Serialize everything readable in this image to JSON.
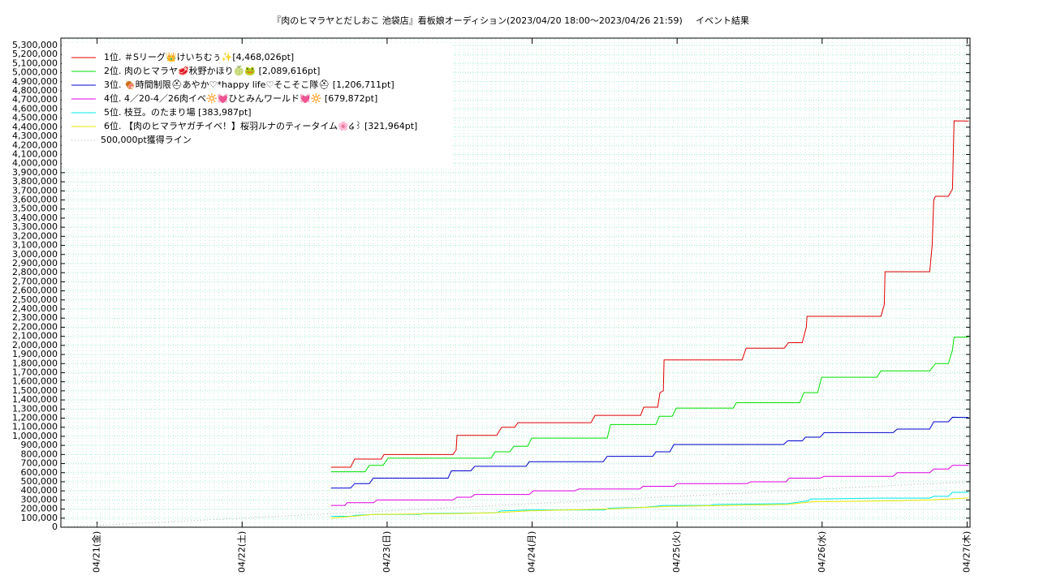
{
  "chart_data": {
    "type": "line",
    "title": "『肉のヒマラヤとだしおこ 池袋店』看板娘オーディション(2023/04/20 18:00〜2023/04/26 21:59)",
    "subtitle": "イベント結果",
    "xlim": [
      20.75,
      27.02
    ],
    "xticks": [
      {
        "value": 21,
        "label": "04/21(金)"
      },
      {
        "value": 22,
        "label": "04/22(土)"
      },
      {
        "value": 23,
        "label": "04/23(日)"
      },
      {
        "value": 24,
        "label": "04/24(月)"
      },
      {
        "value": 25,
        "label": "04/25(火)"
      },
      {
        "value": 26,
        "label": "04/26(水)"
      },
      {
        "value": 27,
        "label": "04/27(木)"
      }
    ],
    "ylim": [
      0,
      5380000
    ],
    "yticks": [
      0,
      {
        "value": 100000,
        "label": "100,000"
      },
      {
        "value": 200000,
        "label": "200,000"
      },
      {
        "value": 300000,
        "label": "300,000"
      },
      {
        "value": 400000,
        "label": "400,000"
      },
      {
        "value": 500000,
        "label": "500,000"
      },
      {
        "value": 600000,
        "label": "600,000"
      },
      {
        "value": 700000,
        "label": "700,000"
      },
      {
        "value": 800000,
        "label": "800,000"
      },
      {
        "value": 900000,
        "label": "900,000"
      },
      {
        "value": 1000000,
        "label": "1,000,000"
      },
      {
        "value": 1100000,
        "label": "1,100,000"
      },
      {
        "value": 1200000,
        "label": "1,200,000"
      },
      {
        "value": 1300000,
        "label": "1,300,000"
      },
      {
        "value": 1400000,
        "label": "1,400,000"
      },
      {
        "value": 1500000,
        "label": "1,500,000"
      },
      {
        "value": 1600000,
        "label": "1,600,000"
      },
      {
        "value": 1700000,
        "label": "1,700,000"
      },
      {
        "value": 1800000,
        "label": "1,800,000"
      },
      {
        "value": 1900000,
        "label": "1,900,000"
      },
      {
        "value": 2000000,
        "label": "2,000,000"
      },
      {
        "value": 2100000,
        "label": "2,100,000"
      },
      {
        "value": 2200000,
        "label": "2,200,000"
      },
      {
        "value": 2300000,
        "label": "2,300,000"
      },
      {
        "value": 2400000,
        "label": "2,400,000"
      },
      {
        "value": 2500000,
        "label": "2,500,000"
      },
      {
        "value": 2600000,
        "label": "2,600,000"
      },
      {
        "value": 2700000,
        "label": "2,700,000"
      },
      {
        "value": 2800000,
        "label": "2,800,000"
      },
      {
        "value": 2900000,
        "label": "2,900,000"
      },
      {
        "value": 3000000,
        "label": "3,000,000"
      },
      {
        "value": 3100000,
        "label": "3,100,000"
      },
      {
        "value": 3200000,
        "label": "3,200,000"
      },
      {
        "value": 3300000,
        "label": "3,300,000"
      },
      {
        "value": 3400000,
        "label": "3,400,000"
      },
      {
        "value": 3500000,
        "label": "3,500,000"
      },
      {
        "value": 3600000,
        "label": "3,600,000"
      },
      {
        "value": 3700000,
        "label": "3,700,000"
      },
      {
        "value": 3800000,
        "label": "3,800,000"
      },
      {
        "value": 3900000,
        "label": "3,900,000"
      },
      {
        "value": 4000000,
        "label": "4,000,000"
      },
      {
        "value": 4100000,
        "label": "4,100,000"
      },
      {
        "value": 4200000,
        "label": "4,200,000"
      },
      {
        "value": 4300000,
        "label": "4,300,000"
      },
      {
        "value": 4400000,
        "label": "4,400,000"
      },
      {
        "value": 4500000,
        "label": "4,500,000"
      },
      {
        "value": 4600000,
        "label": "4,600,000"
      },
      {
        "value": 4700000,
        "label": "4,700,000"
      },
      {
        "value": 4800000,
        "label": "4,800,000"
      },
      {
        "value": 4900000,
        "label": "4,900,000"
      },
      {
        "value": 5000000,
        "label": "5,000,000"
      },
      {
        "value": 5100000,
        "label": "5,100,000"
      },
      {
        "value": 5200000,
        "label": "5,200,000"
      },
      {
        "value": 5300000,
        "label": "5,300,000"
      }
    ],
    "grid": true,
    "legend": "top-left",
    "series": [
      {
        "name": "1位. ＃Sリーグ👑けいちむぅ✨[4,468,026pt]",
        "color": "#e00000",
        "x": [
          22.613,
          22.748,
          22.776,
          22.961,
          22.978,
          23.454,
          23.476,
          23.482,
          23.756,
          23.79,
          23.88,
          23.902,
          24.406,
          24.434,
          24.748,
          24.77,
          24.866,
          24.882,
          24.905,
          24.91,
          25.448,
          25.476,
          25.739,
          25.768,
          25.863,
          25.891,
          25.896,
          26.406,
          26.429,
          26.434,
          26.742,
          26.759,
          26.77,
          26.782,
          26.871,
          26.899,
          26.91,
          27.011
        ],
        "values": [
          660000,
          660000,
          750000,
          750000,
          800000,
          800000,
          850000,
          1010000,
          1010000,
          1100000,
          1100000,
          1150000,
          1150000,
          1230000,
          1230000,
          1320000,
          1320000,
          1480000,
          1500000,
          1840000,
          1840000,
          1970000,
          1970000,
          2030000,
          2030000,
          2200000,
          2320000,
          2320000,
          2450000,
          2810000,
          2810000,
          3100000,
          3600000,
          3640000,
          3640000,
          3720000,
          4470000,
          4468026
        ]
      },
      {
        "name": "2位. 肉のヒマラヤ🥩秋野かほり🍈🐸 [2,089,616pt]",
        "color": "#00e000",
        "x": [
          22.613,
          22.849,
          22.877,
          22.972,
          23.006,
          23.717,
          23.745,
          23.846,
          23.874,
          23.969,
          23.997,
          24.518,
          24.541,
          24.854,
          24.877,
          24.966,
          24.994,
          25.387,
          25.409,
          25.846,
          25.874,
          25.969,
          25.997,
          26.378,
          26.406,
          26.742,
          26.782,
          26.871,
          26.899,
          26.91,
          27.011
        ],
        "values": [
          610000,
          610000,
          680000,
          680000,
          760000,
          760000,
          830000,
          830000,
          890000,
          890000,
          980000,
          980000,
          1130000,
          1130000,
          1220000,
          1220000,
          1310000,
          1310000,
          1370000,
          1370000,
          1480000,
          1480000,
          1650000,
          1650000,
          1720000,
          1720000,
          1800000,
          1800000,
          1950000,
          2090000,
          2089616
        ]
      },
      {
        "name": "3位. 🍖時間制限⛑あやか♡*happy life♡そこそこ隊⛑ [1,206,711pt]",
        "color": "#0000d0",
        "x": [
          22.613,
          22.748,
          22.776,
          22.877,
          22.905,
          23.42,
          23.443,
          23.577,
          23.605,
          23.958,
          23.98,
          24.49,
          24.518,
          24.832,
          24.854,
          24.95,
          24.978,
          25.734,
          25.762,
          25.863,
          25.885,
          25.986,
          26.014,
          26.49,
          26.518,
          26.742,
          26.77,
          26.871,
          26.899,
          27.011
        ],
        "values": [
          430000,
          430000,
          480000,
          480000,
          540000,
          540000,
          620000,
          620000,
          670000,
          670000,
          720000,
          720000,
          780000,
          780000,
          830000,
          830000,
          910000,
          910000,
          950000,
          950000,
          990000,
          990000,
          1040000,
          1040000,
          1080000,
          1080000,
          1160000,
          1160000,
          1210000,
          1206711
        ]
      },
      {
        "name": "4位. 4／20-4／26肉イベ🔆💓ひとみんワールド💓🔆 [679,872pt]",
        "color": "#e000e0",
        "x": [
          22.613,
          22.709,
          22.725,
          22.905,
          22.933,
          23.454,
          23.482,
          23.577,
          23.605,
          23.98,
          24.008,
          24.294,
          24.322,
          24.742,
          24.765,
          24.978,
          25.0,
          25.482,
          25.51,
          25.751,
          25.773,
          25.986,
          26.014,
          26.49,
          26.518,
          26.742,
          26.77,
          26.871,
          26.899,
          27.011
        ],
        "values": [
          240000,
          240000,
          270000,
          270000,
          300000,
          300000,
          330000,
          330000,
          360000,
          360000,
          400000,
          400000,
          420000,
          420000,
          450000,
          450000,
          480000,
          480000,
          500000,
          500000,
          540000,
          540000,
          560000,
          560000,
          600000,
          600000,
          640000,
          640000,
          680000,
          679872
        ]
      },
      {
        "name": "5位. 枝豆。のたまり場 [383,987pt]",
        "color": "#00e8e8",
        "x": [
          22.613,
          22.748,
          22.776,
          22.905,
          23.23,
          23.241,
          23.756,
          23.784,
          23.997,
          24.501,
          24.529,
          24.782,
          24.91,
          25.23,
          25.258,
          25.762,
          25.902,
          25.919,
          26.378,
          26.742,
          26.77,
          26.871,
          26.899,
          27.011
        ],
        "values": [
          120000,
          120000,
          130000,
          140000,
          140000,
          150000,
          160000,
          180000,
          190000,
          190000,
          210000,
          220000,
          240000,
          240000,
          250000,
          260000,
          290000,
          310000,
          320000,
          320000,
          340000,
          340000,
          384000,
          383987
        ]
      },
      {
        "name": "6位. 【肉のヒマラヤガチイベ！】桜羽ルナのティータイム🌸໒꒱ [321,964pt]",
        "color": "#e8e800",
        "x": [
          22.613,
          22.905,
          23.465,
          23.745,
          23.969,
          24.501,
          24.95,
          25.762,
          25.93,
          26.49,
          26.742,
          26.871,
          27.011
        ],
        "values": [
          100000,
          140000,
          150000,
          160000,
          180000,
          200000,
          230000,
          250000,
          280000,
          290000,
          300000,
          310000,
          321964
        ]
      },
      {
        "name": "500,000pt獲得ライン",
        "color": "#b0b0b0",
        "style": "dotted",
        "x": [
          20.75,
          27.011
        ],
        "values": [
          0,
          500000
        ]
      }
    ]
  }
}
